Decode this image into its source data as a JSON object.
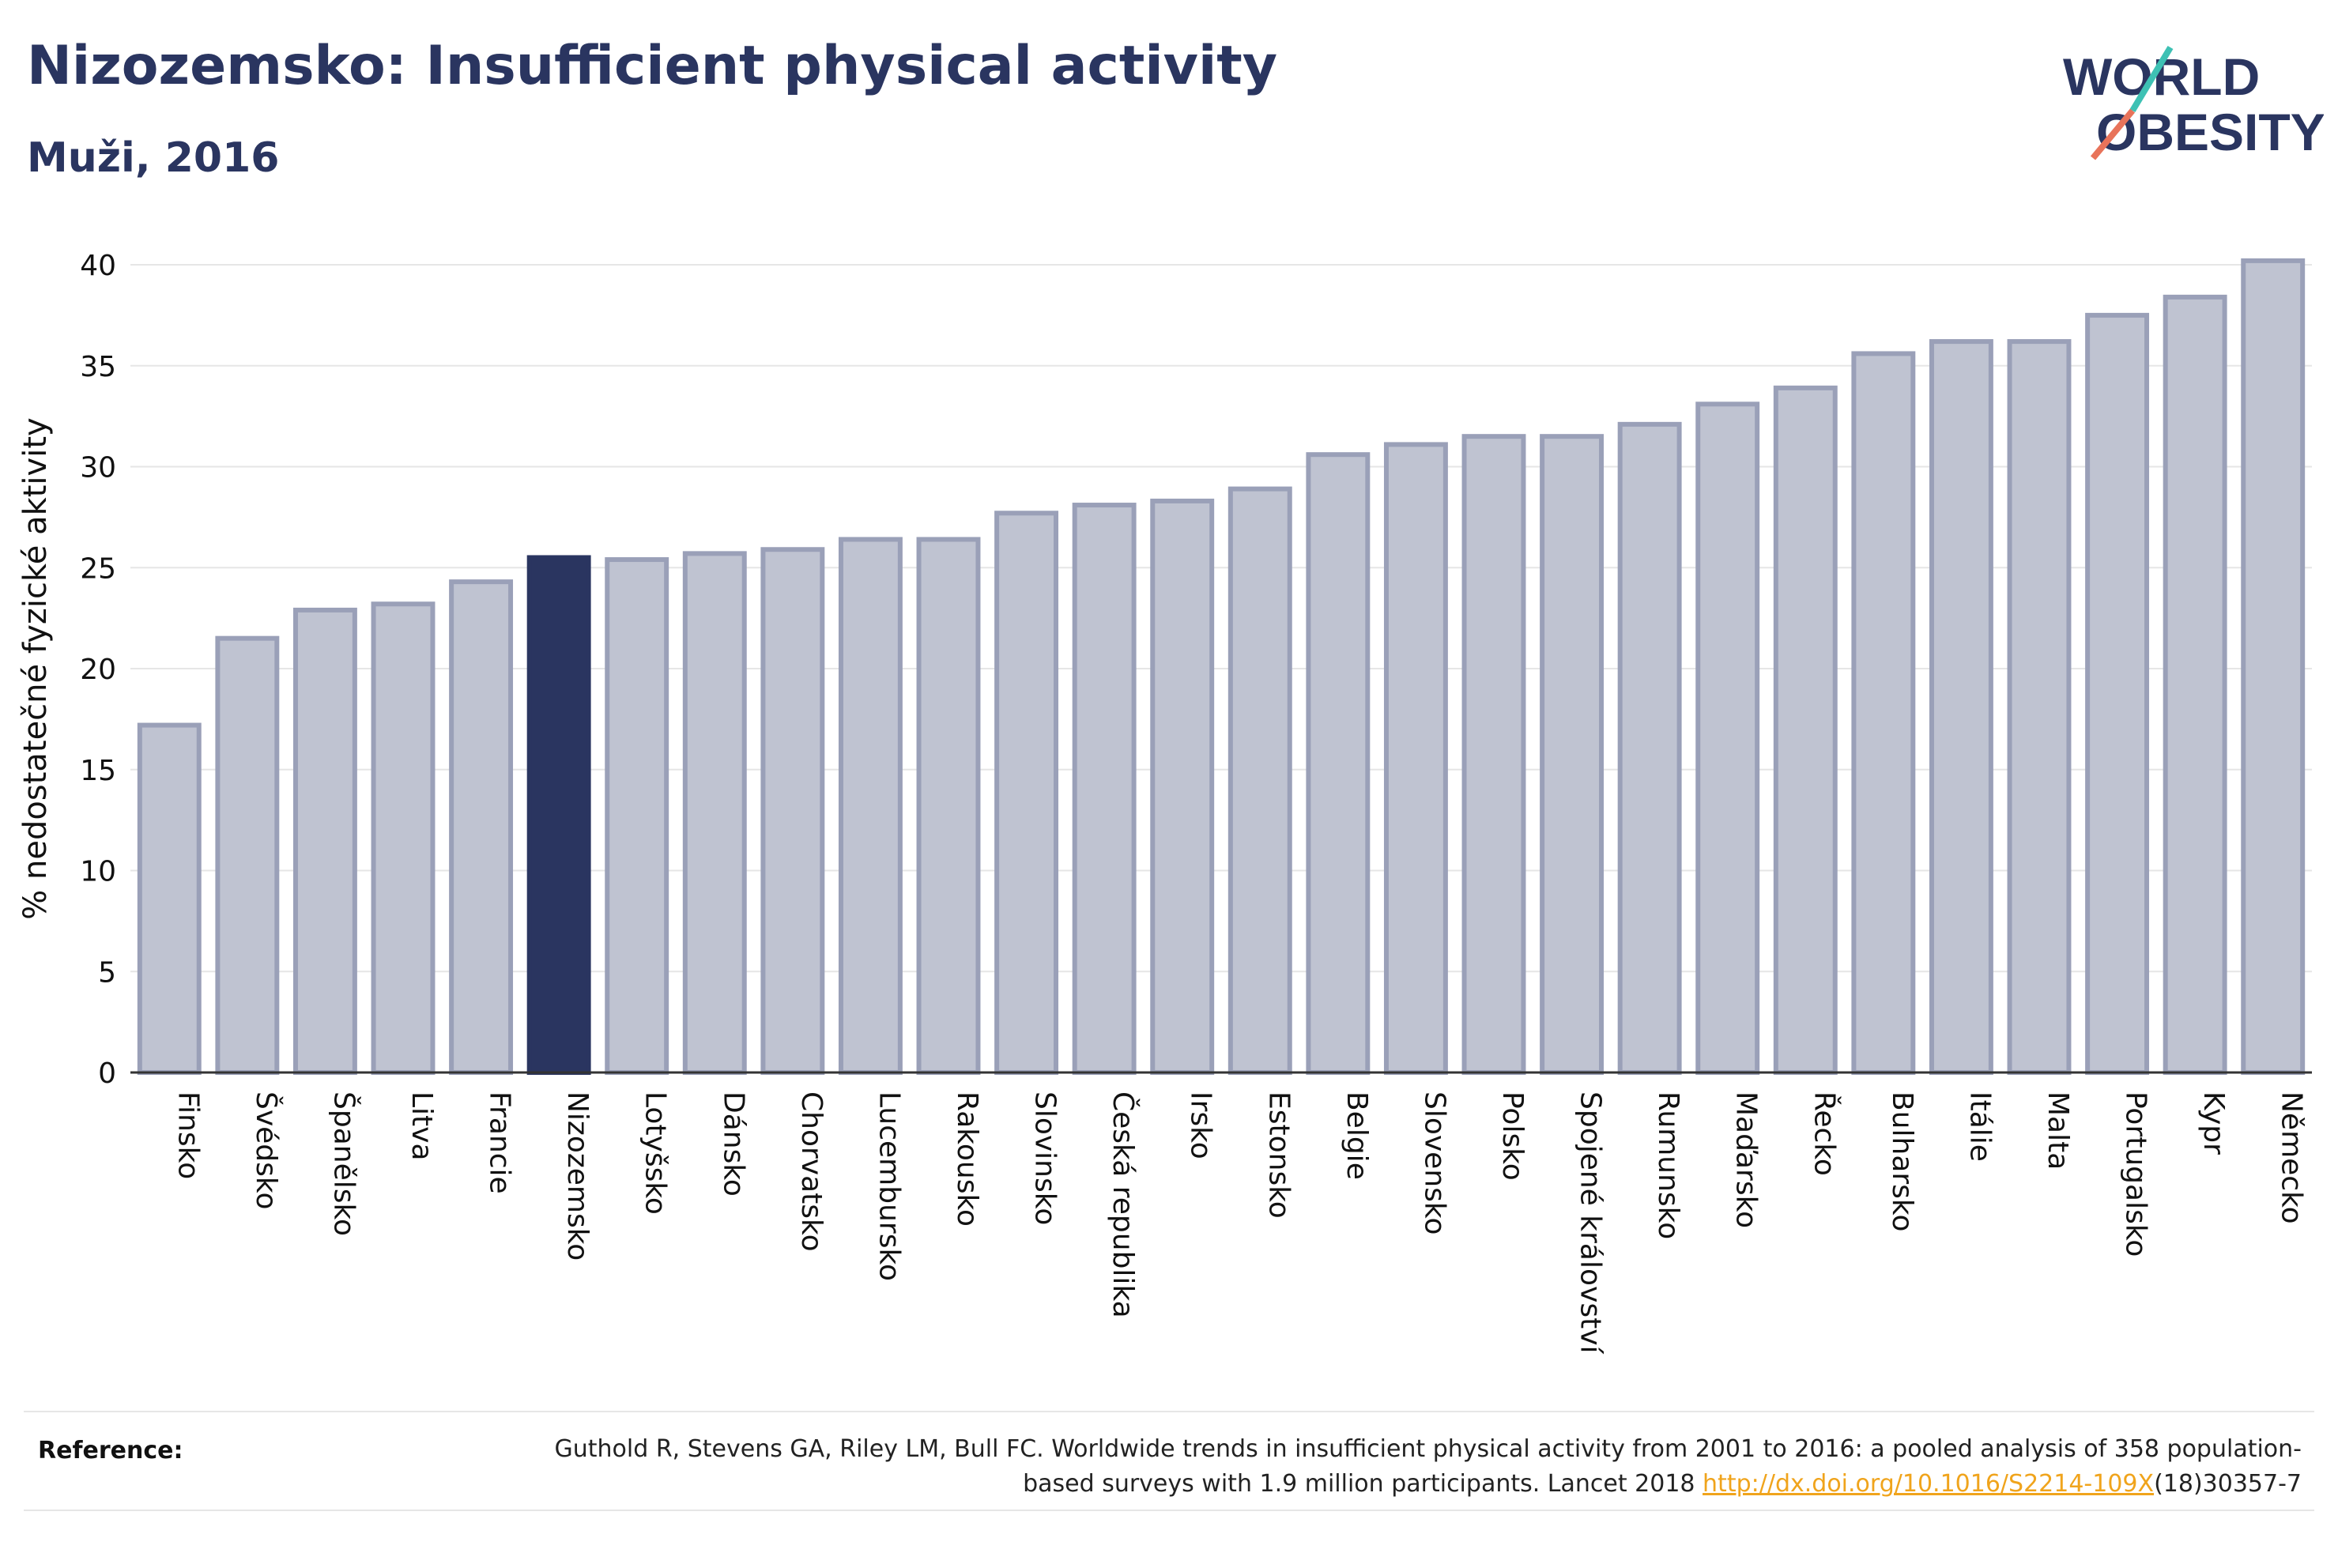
{
  "header": {
    "title": "Nizozemsko: Insufficient physical activity",
    "subtitle": "Muži, 2016"
  },
  "logo": {
    "line1": "WORLD",
    "line2": "OBESITY",
    "accent_teal": "#3ec1b4",
    "accent_coral": "#e8735a"
  },
  "colors": {
    "bar_default_fill": "#bfc3d1",
    "bar_default_stroke": "#9aa0b8",
    "bar_highlight": "#2a3560",
    "axis": "#333333",
    "grid": "#e6e6e6"
  },
  "chart_data": {
    "type": "bar",
    "ylabel": "% nedostatečné fyzické aktivity",
    "xlabel": "",
    "ylim": [
      0,
      40
    ],
    "yticks": [
      0,
      5,
      10,
      15,
      20,
      25,
      30,
      35,
      40
    ],
    "grid": true,
    "highlight": "Nizozemsko",
    "categories": [
      "Finsko",
      "Švédsko",
      "Španělsko",
      "Litva",
      "Francie",
      "Nizozemsko",
      "Lotyšsko",
      "Dánsko",
      "Chorvatsko",
      "Lucembursko",
      "Rakousko",
      "Slovinsko",
      "Česká republika",
      "Irsko",
      "Estonsko",
      "Belgie",
      "Slovensko",
      "Polsko",
      "Spojené království",
      "Rumunsko",
      "Maďarsko",
      "Řecko",
      "Bulharsko",
      "Itálie",
      "Malta",
      "Portugalsko",
      "Kypr",
      "Německo"
    ],
    "values": [
      17.2,
      21.5,
      22.9,
      23.2,
      24.3,
      25.5,
      25.4,
      25.7,
      25.9,
      26.4,
      26.4,
      27.7,
      28.1,
      28.3,
      28.9,
      30.6,
      31.1,
      31.5,
      31.5,
      32.1,
      33.1,
      33.9,
      35.6,
      36.2,
      36.2,
      37.5,
      38.4,
      40.2
    ]
  },
  "reference": {
    "label": "Reference:",
    "text_before_link": "Guthold R, Stevens GA, Riley LM, Bull FC. Worldwide trends in insufficient physical activity from 2001 to 2016: a pooled analysis of 358 population-based surveys with 1.9 million participants. Lancet 2018 ",
    "link": "http://dx.doi.org/10.1016/S2214-109X",
    "text_after_link": "(18)30357-7"
  }
}
